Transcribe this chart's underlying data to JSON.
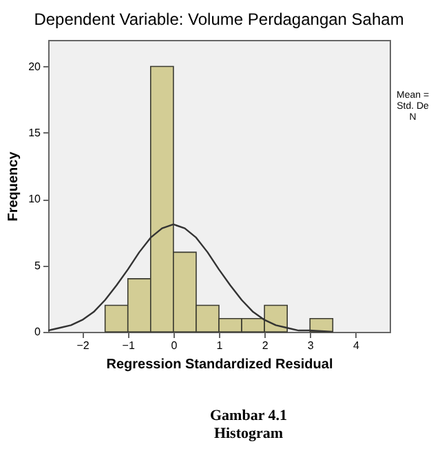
{
  "chart_data": {
    "type": "histogram",
    "title": "Dependent Variable: Volume Perdagangan Saham",
    "xlabel": "Regression Standardized Residual",
    "ylabel": "Frequency",
    "bins": [
      -1.5,
      -1,
      -0.5,
      0,
      0.5,
      1,
      1.5,
      2,
      2.5,
      3,
      3.5
    ],
    "series": [
      {
        "color": "#d3cd95",
        "values": [
          2,
          4,
          20,
          6,
          2,
          1,
          1,
          2,
          0,
          1
        ]
      },
      {
        "type": "line",
        "color": "#333333",
        "x": [
          -2.75,
          -2.5,
          -2.25,
          -2,
          -1.75,
          -1.5,
          -1.25,
          -1,
          -0.75,
          -0.5,
          -0.25,
          0,
          0.25,
          0.5,
          0.75,
          1,
          1.25,
          1.5,
          1.75,
          2,
          2.25,
          2.5,
          2.75,
          3,
          3.5
        ],
        "values": [
          0.1,
          0.3,
          0.5,
          0.9,
          1.5,
          2.4,
          3.5,
          4.7,
          6.0,
          7.1,
          7.8,
          8.1,
          7.8,
          7.1,
          6.0,
          4.7,
          3.5,
          2.4,
          1.5,
          0.9,
          0.5,
          0.3,
          0.1,
          0.1,
          0
        ]
      }
    ],
    "xlim": [
      -2.75,
      4.75
    ],
    "xticks": [
      -2,
      -1,
      0,
      1,
      2,
      3,
      4
    ],
    "ylim": [
      0,
      22
    ],
    "yticks": [
      0,
      5,
      10,
      15,
      20
    ],
    "annotations": [
      "Mean =",
      "Std. De",
      "N",
      "Gambar 4.1",
      "Histogram"
    ]
  }
}
